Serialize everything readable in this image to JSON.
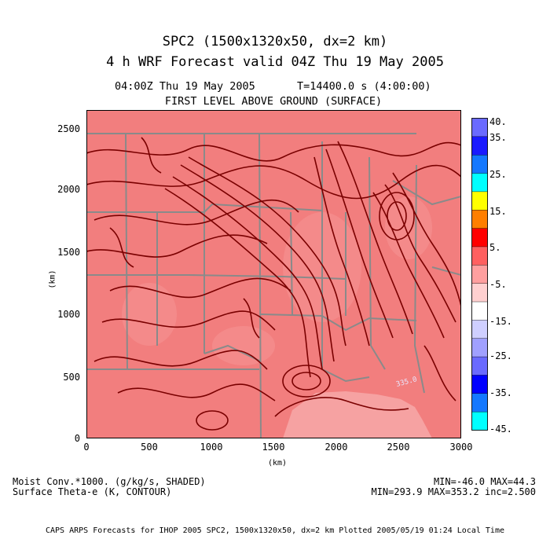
{
  "header": {
    "title_line1": "SPC2 (1500x1320x50, dx=2 km)",
    "title_line2": "4 h  WRF Forecast valid 04Z Thu 19 May 2005",
    "valid_time": "04:00Z Thu 19 May 2005",
    "forecast_time": "T=14400.0 s (4:00:00)",
    "level": "FIRST LEVEL ABOVE GROUND (SURFACE)"
  },
  "axes": {
    "y_ticks": [
      "2500",
      "2000",
      "1500",
      "1000",
      "500",
      "0"
    ],
    "x_ticks": [
      "0",
      "500",
      "1000",
      "1500",
      "2000",
      "2500",
      "3000"
    ],
    "y_unit": "(km)",
    "x_unit": "(km)"
  },
  "map": {
    "fill_color": "#f27e7e",
    "contour_color": "#7a0000",
    "border_color": "#8a8a8a",
    "contour_label": "335.0"
  },
  "colorbar": {
    "labels": [
      "40.",
      "35.",
      "25.",
      "15.",
      "5.",
      "-5.",
      "-15.",
      "-25.",
      "-35.",
      "-45."
    ],
    "colors": [
      "#6a6aff",
      "#1a1aff",
      "#1478ff",
      "#00ffff",
      "#ffff00",
      "#ff7f00",
      "#ff0000",
      "#ff6060",
      "#ff9f9f",
      "#ffd0d0",
      "#ffffff",
      "#cfcfff",
      "#a0a0ff",
      "#6a6aff",
      "#0000ff",
      "#1478ff",
      "#00ffff"
    ]
  },
  "footer": {
    "left_line1": "Moist Conv.*1000. (g/kg/s, SHADED)",
    "left_line2": "Surface Theta-e (K, CONTOUR)",
    "right_line1": "MIN=-46.0 MAX=44.3",
    "right_line2": "MIN=293.9 MAX=353.2 inc=2.500",
    "credit": "CAPS ARPS Forecasts for IHOP 2005  SPC2, 1500x1320x50, dx=2 km  Plotted 2005/05/19 01:24 Local Time"
  }
}
